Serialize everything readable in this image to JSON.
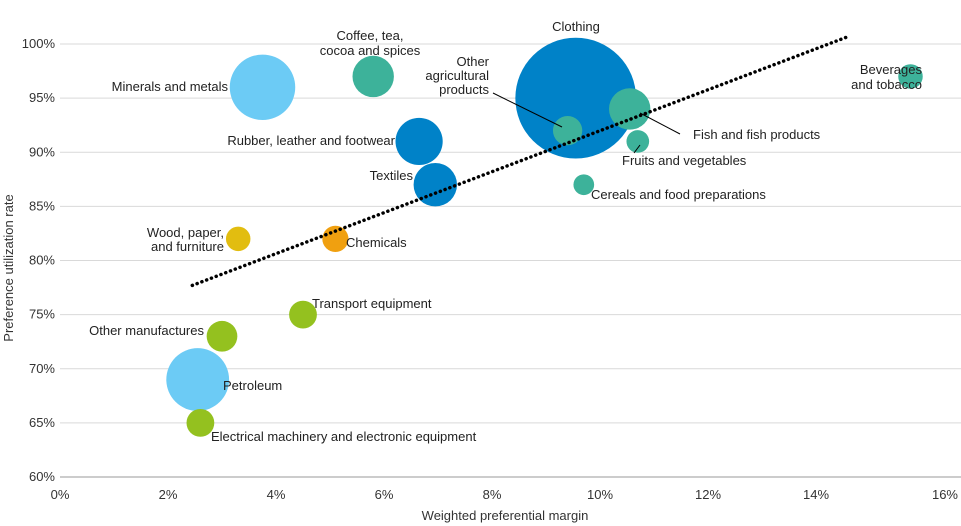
{
  "chart_data": {
    "type": "scatter",
    "title": "",
    "xlabel": "Weighted preferential margin",
    "ylabel": "Preference utilization rate",
    "xlim": [
      0,
      16
    ],
    "ylim": [
      60,
      100
    ],
    "x_ticks": [
      0,
      2,
      4,
      6,
      8,
      10,
      12,
      14,
      16
    ],
    "x_tick_labels": [
      "0%",
      "2%",
      "4%",
      "6%",
      "8%",
      "10%",
      "12%",
      "14%",
      "16%"
    ],
    "y_ticks": [
      60,
      65,
      70,
      75,
      80,
      85,
      90,
      95,
      100
    ],
    "y_tick_labels": [
      "60%",
      "65%",
      "70%",
      "75%",
      "80%",
      "85%",
      "90%",
      "95%",
      "100%"
    ],
    "grid": "horizontal",
    "trendline": {
      "style": "dotted",
      "from": [
        2.45,
        77.7
      ],
      "to": [
        14.55,
        100.6
      ]
    },
    "colors": {
      "light_blue": "#6ccbf5",
      "blue": "#0082c8",
      "teal": "#3db29a",
      "yellow": "#e2bd10",
      "orange": "#f0a010",
      "green": "#94c11f"
    },
    "points": [
      {
        "label": "Clothing",
        "x": 9.55,
        "y": 95.0,
        "size": 8.5,
        "color": "blue"
      },
      {
        "label": "Minerals and metals",
        "x": 3.75,
        "y": 96.0,
        "size": 2.5,
        "color": "light_blue"
      },
      {
        "label": "Coffee, tea, cocoa and spices",
        "x": 5.8,
        "y": 97.0,
        "size": 1.0,
        "color": "teal"
      },
      {
        "label": "Other agricultural products",
        "x": 9.4,
        "y": 92.0,
        "size": 0.5,
        "color": "teal"
      },
      {
        "label": "Beverages and tobacco",
        "x": 15.75,
        "y": 97.0,
        "size": 0.35,
        "color": "teal"
      },
      {
        "label": "Fish and fish products",
        "x": 10.55,
        "y": 94.0,
        "size": 1.0,
        "color": "teal"
      },
      {
        "label": "Fruits and vegetables",
        "x": 10.7,
        "y": 91.0,
        "size": 0.3,
        "color": "teal"
      },
      {
        "label": "Rubber, leather and footwear",
        "x": 6.65,
        "y": 91.0,
        "size": 1.3,
        "color": "blue"
      },
      {
        "label": "Textiles",
        "x": 6.95,
        "y": 87.0,
        "size": 1.1,
        "color": "blue"
      },
      {
        "label": "Cereals and food preparations",
        "x": 9.7,
        "y": 87.0,
        "size": 0.25,
        "color": "teal"
      },
      {
        "label": "Wood, paper, and furniture",
        "x": 3.3,
        "y": 82.0,
        "size": 0.35,
        "color": "yellow"
      },
      {
        "label": "Chemicals",
        "x": 5.1,
        "y": 82.0,
        "size": 0.4,
        "color": "orange"
      },
      {
        "label": "Transport equipment",
        "x": 4.5,
        "y": 75.0,
        "size": 0.45,
        "color": "green"
      },
      {
        "label": "Other manufactures",
        "x": 3.0,
        "y": 73.0,
        "size": 0.55,
        "color": "green"
      },
      {
        "label": "Petroleum",
        "x": 2.55,
        "y": 69.0,
        "size": 2.3,
        "color": "light_blue"
      },
      {
        "label": "Electrical machinery and electronic equipment",
        "x": 2.6,
        "y": 65.0,
        "size": 0.45,
        "color": "green"
      }
    ]
  },
  "point_labels": {
    "clothing": "Clothing",
    "minerals": "Minerals and metals",
    "coffee_1": "Coffee, tea,",
    "coffee_2": "cocoa and spices",
    "other_ag_1": "Other",
    "other_ag_2": "agricultural",
    "other_ag_3": "products",
    "beverages_1": "Beverages",
    "beverages_2": "and tobacco",
    "fish": "Fish and fish products",
    "fruits": "Fruits and vegetables",
    "rubber": "Rubber, leather and footwear",
    "textiles": "Textiles",
    "cereals": "Cereals and food preparations",
    "wood_1": "Wood, paper,",
    "wood_2": "and furniture",
    "chemicals": "Chemicals",
    "transport": "Transport equipment",
    "other_manuf": "Other manufactures",
    "petroleum": "Petroleum",
    "electrical": "Electrical machinery and electronic equipment"
  }
}
